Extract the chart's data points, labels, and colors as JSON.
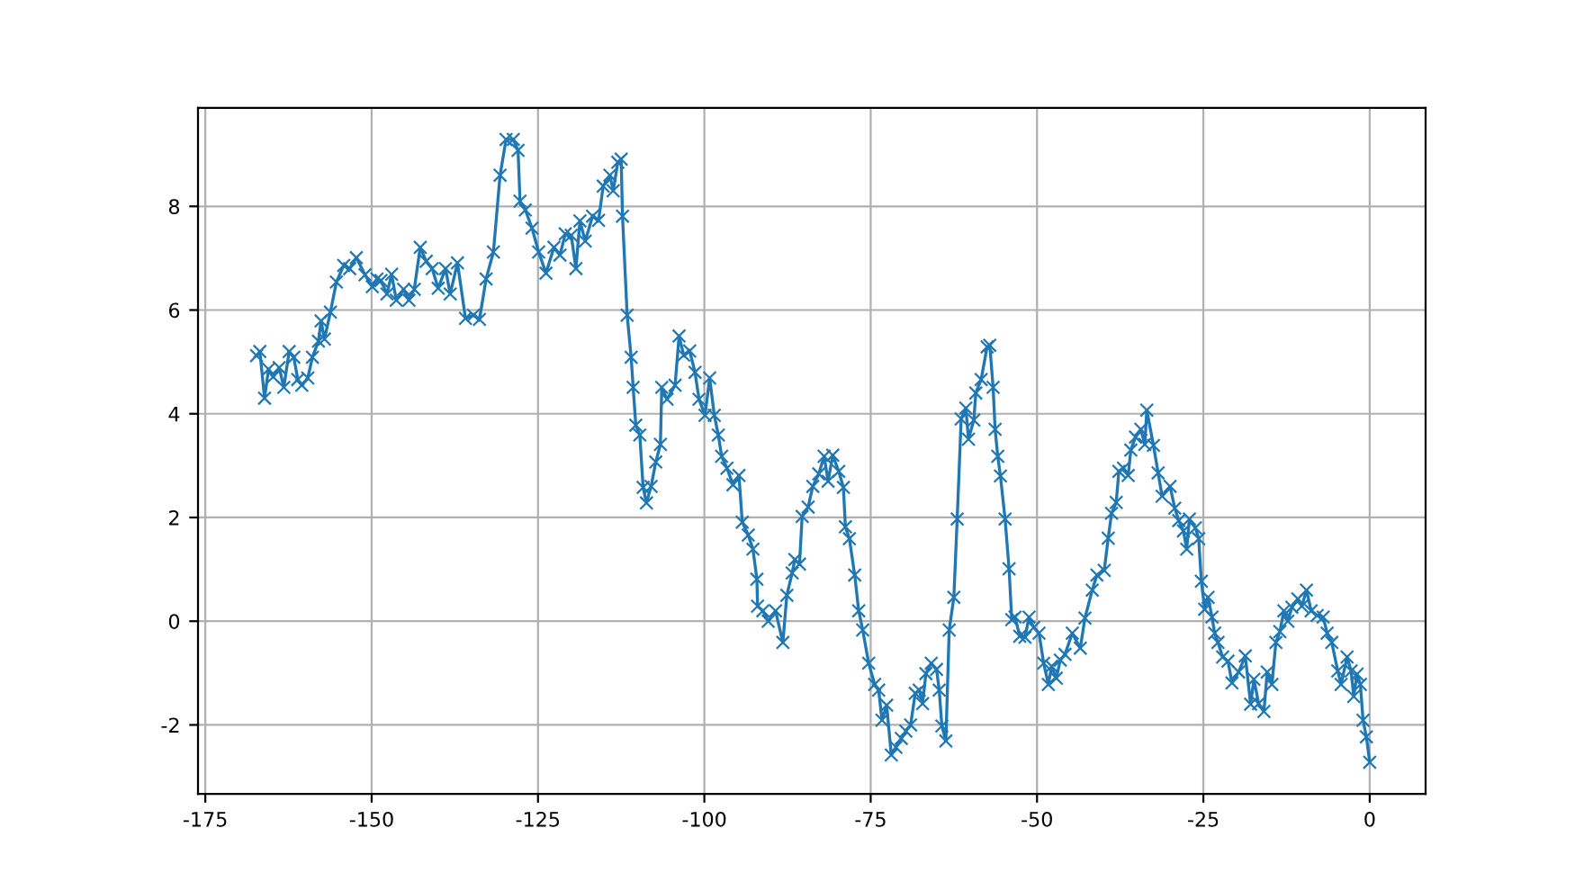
{
  "chart_data": {
    "type": "line",
    "x": [
      -167.3,
      -166.8,
      -166.1,
      -165.5,
      -164.8,
      -163.9,
      -163.2,
      -162.4,
      -161.7,
      -161.1,
      -160.5,
      -159.6,
      -158.9,
      -158.0,
      -157.6,
      -157.1,
      -156.2,
      -155.3,
      -154.2,
      -153.3,
      -152.3,
      -151.0,
      -149.9,
      -149.2,
      -148.6,
      -147.7,
      -147.0,
      -146.3,
      -145.2,
      -144.4,
      -143.6,
      -142.7,
      -141.8,
      -140.9,
      -140.0,
      -138.9,
      -138.2,
      -137.1,
      -135.9,
      -134.7,
      -133.8,
      -132.8,
      -131.7,
      -130.7,
      -129.8,
      -128.7,
      -128.0,
      -127.7,
      -126.9,
      -125.9,
      -124.9,
      -123.8,
      -122.6,
      -121.7,
      -120.9,
      -120.0,
      -119.3,
      -118.7,
      -117.9,
      -116.8,
      -115.9,
      -115.2,
      -114.2,
      -113.7,
      -113.0,
      -112.5,
      -112.3,
      -111.6,
      -111.0,
      -110.7,
      -110.3,
      -109.7,
      -109.2,
      -108.7,
      -108.0,
      -107.3,
      -106.6,
      -106.4,
      -105.6,
      -104.4,
      -103.8,
      -103.1,
      -102.2,
      -101.4,
      -100.8,
      -99.9,
      -99.2,
      -98.5,
      -97.9,
      -97.4,
      -96.6,
      -95.7,
      -94.8,
      -94.3,
      -93.4,
      -92.7,
      -92.1,
      -92.0,
      -91.2,
      -90.4,
      -89.3,
      -88.2,
      -87.6,
      -86.8,
      -86.4,
      -85.7,
      -85.3,
      -84.4,
      -83.7,
      -82.8,
      -82.0,
      -81.4,
      -80.7,
      -79.8,
      -79.1,
      -78.8,
      -78.2,
      -77.4,
      -76.8,
      -76.2,
      -75.3,
      -74.4,
      -73.8,
      -73.3,
      -72.6,
      -71.9,
      -71.2,
      -70.4,
      -69.7,
      -69.0,
      -68.3,
      -67.7,
      -67.2,
      -66.7,
      -65.9,
      -65.1,
      -64.7,
      -64.3,
      -63.7,
      -63.2,
      -62.5,
      -62.0,
      -61.4,
      -60.7,
      -60.3,
      -59.5,
      -59.2,
      -58.4,
      -57.5,
      -57.1,
      -56.6,
      -56.3,
      -55.9,
      -55.5,
      -54.8,
      -54.2,
      -53.8,
      -53.3,
      -52.6,
      -51.8,
      -51.2,
      -50.5,
      -49.7,
      -49.0,
      -48.3,
      -47.8,
      -47.1,
      -46.5,
      -45.8,
      -44.7,
      -43.5,
      -42.8,
      -41.7,
      -41.0,
      -39.9,
      -39.3,
      -38.8,
      -38.1,
      -37.7,
      -37.0,
      -36.3,
      -35.9,
      -35.2,
      -34.4,
      -33.8,
      -33.5,
      -32.5,
      -31.8,
      -31.2,
      -30.0,
      -29.3,
      -28.7,
      -28.0,
      -27.5,
      -27.1,
      -26.2,
      -25.7,
      -25.3,
      -24.8,
      -24.3,
      -23.7,
      -23.3,
      -22.8,
      -22.1,
      -21.3,
      -20.7,
      -19.7,
      -18.7,
      -17.9,
      -17.4,
      -16.7,
      -15.9,
      -15.4,
      -14.7,
      -14.1,
      -13.5,
      -12.9,
      -12.3,
      -11.7,
      -10.8,
      -10.2,
      -9.5,
      -8.8,
      -7.9,
      -7.0,
      -6.4,
      -5.7,
      -4.8,
      -4.3,
      -3.4,
      -2.8,
      -2.4,
      -1.9,
      -1.4,
      -1.0,
      -0.5,
      0.0
    ],
    "series": [
      {
        "color": "#1f77b4",
        "values": [
          5.12,
          5.2,
          4.3,
          4.86,
          4.71,
          4.89,
          4.51,
          5.2,
          5.09,
          4.66,
          4.55,
          4.69,
          5.09,
          5.4,
          5.79,
          5.44,
          5.96,
          6.54,
          6.86,
          6.8,
          7.01,
          6.68,
          6.45,
          6.6,
          6.57,
          6.31,
          6.69,
          6.19,
          6.4,
          6.19,
          6.4,
          7.21,
          6.94,
          6.8,
          6.42,
          6.8,
          6.31,
          6.91,
          5.84,
          5.9,
          5.82,
          6.6,
          7.12,
          8.6,
          9.29,
          9.29,
          9.08,
          8.1,
          7.93,
          7.58,
          7.12,
          6.71,
          7.21,
          7.06,
          7.47,
          7.44,
          6.8,
          7.72,
          7.33,
          7.81,
          7.73,
          8.39,
          8.6,
          8.3,
          8.85,
          8.91,
          7.81,
          5.9,
          5.09,
          4.51,
          3.78,
          3.59,
          2.58,
          2.28,
          2.6,
          3.07,
          3.41,
          4.51,
          4.28,
          4.55,
          5.5,
          5.13,
          5.21,
          4.8,
          4.28,
          3.97,
          4.69,
          3.97,
          3.59,
          3.18,
          2.95,
          2.63,
          2.81,
          1.91,
          1.66,
          1.39,
          0.81,
          0.29,
          0.2,
          0.0,
          0.2,
          -0.41,
          0.5,
          0.93,
          1.19,
          1.1,
          2.02,
          2.2,
          2.6,
          2.84,
          3.18,
          2.7,
          3.2,
          2.89,
          2.58,
          1.82,
          1.59,
          0.89,
          0.2,
          -0.17,
          -0.81,
          -1.22,
          -1.33,
          -1.91,
          -1.62,
          -2.58,
          -2.43,
          -2.26,
          -2.12,
          -2.0,
          -1.39,
          -1.33,
          -1.59,
          -1.01,
          -0.81,
          -0.93,
          -1.33,
          -2.02,
          -2.31,
          -0.17,
          0.46,
          1.97,
          3.9,
          4.11,
          3.51,
          3.88,
          4.4,
          4.66,
          5.29,
          5.32,
          4.51,
          3.7,
          3.18,
          2.8,
          1.97,
          1.01,
          0.03,
          0.08,
          -0.29,
          -0.31,
          0.08,
          -0.12,
          -0.23,
          -0.81,
          -1.22,
          -0.87,
          -1.1,
          -0.75,
          -0.64,
          -0.23,
          -0.52,
          0.06,
          0.6,
          0.89,
          0.98,
          1.6,
          2.08,
          2.29,
          2.89,
          2.95,
          2.81,
          3.3,
          3.55,
          3.7,
          3.41,
          4.07,
          3.39,
          2.86,
          2.41,
          2.6,
          2.18,
          1.94,
          1.74,
          1.39,
          1.97,
          1.8,
          1.59,
          0.77,
          0.23,
          0.46,
          0.08,
          -0.23,
          -0.41,
          -0.69,
          -0.77,
          -1.19,
          -0.98,
          -0.67,
          -1.6,
          -1.12,
          -1.59,
          -1.74,
          -0.98,
          -1.22,
          -0.41,
          -0.2,
          0.2,
          0.0,
          0.27,
          0.43,
          0.29,
          0.6,
          0.2,
          0.11,
          0.08,
          -0.23,
          -0.41,
          -0.96,
          -1.22,
          -0.69,
          -0.96,
          -1.45,
          -1.02,
          -1.22,
          -1.91,
          -2.23,
          -2.72
        ]
      }
    ],
    "xlim": [
      -176.1,
      8.4
    ],
    "ylim": [
      -3.33,
      9.9
    ],
    "xticks": [
      -175,
      -150,
      -125,
      -100,
      -75,
      -50,
      -25,
      0
    ],
    "yticks": [
      -2,
      0,
      2,
      4,
      6,
      8
    ],
    "grid": true,
    "marker": "cross",
    "line_style": "solid"
  }
}
